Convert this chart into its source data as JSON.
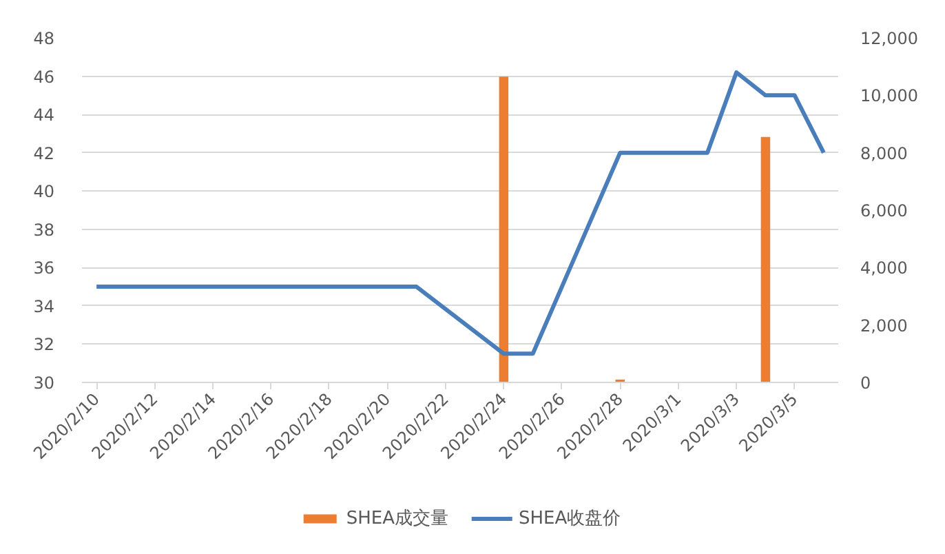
{
  "chart_data": {
    "type": "bar",
    "xlim": [
      "2020-02-09T12:00",
      "2020-03-06T12:00"
    ],
    "xticks": [
      {
        "value": "2020-02-10",
        "label": "2020/2/10"
      },
      {
        "value": "2020-02-12",
        "label": "2020/2/12"
      },
      {
        "value": "2020-02-14",
        "label": "2020/2/14"
      },
      {
        "value": "2020-02-16",
        "label": "2020/2/16"
      },
      {
        "value": "2020-02-18",
        "label": "2020/2/18"
      },
      {
        "value": "2020-02-20",
        "label": "2020/2/20"
      },
      {
        "value": "2020-02-22",
        "label": "2020/2/22"
      },
      {
        "value": "2020-02-24",
        "label": "2020/2/24"
      },
      {
        "value": "2020-02-26",
        "label": "2020/2/26"
      },
      {
        "value": "2020-02-28",
        "label": "2020/2/28"
      },
      {
        "value": "2020-03-01",
        "label": "2020/3/1"
      },
      {
        "value": "2020-03-03",
        "label": "2020/3/3"
      },
      {
        "value": "2020-03-05",
        "label": "2020/3/5"
      }
    ],
    "ylim": [
      30,
      48
    ],
    "yticks": [
      30,
      32,
      34,
      36,
      38,
      40,
      42,
      44,
      46,
      48
    ],
    "y2lim": [
      0,
      12000
    ],
    "y2ticks": [
      0,
      {
        "value": 2000,
        "label": "2,000"
      },
      {
        "value": 4000,
        "label": "4,000"
      },
      {
        "value": 6000,
        "label": "6,000"
      },
      {
        "value": 8000,
        "label": "8,000"
      },
      {
        "value": 10000,
        "label": "10,000"
      },
      {
        "value": 12000,
        "label": "12,000"
      }
    ],
    "grid": "y",
    "legend": "bottom",
    "series": [
      {
        "name": "SHEA成交量",
        "axis": "y2",
        "color": "#ed7d31",
        "x": [
          "2020-02-24",
          "2020-02-28",
          "2020-03-04"
        ],
        "values": [
          10650,
          100,
          8550
        ]
      },
      {
        "name": "SHEA收盘价",
        "type": "line",
        "color": "#4a7ebb",
        "x": [
          "2020-02-10",
          "2020-02-11",
          "2020-02-12",
          "2020-02-13",
          "2020-02-14",
          "2020-02-17",
          "2020-02-18",
          "2020-02-19",
          "2020-02-20",
          "2020-02-21",
          "2020-02-24",
          "2020-02-25",
          "2020-02-26",
          "2020-02-27",
          "2020-02-28",
          "2020-03-02",
          "2020-03-03",
          "2020-03-04",
          "2020-03-05",
          "2020-03-06"
        ],
        "values": [
          35,
          35,
          35,
          35,
          35,
          35,
          35,
          35,
          35,
          35,
          31.5,
          31.5,
          35,
          38.5,
          42,
          42,
          46.2,
          45,
          45,
          42
        ]
      }
    ]
  }
}
